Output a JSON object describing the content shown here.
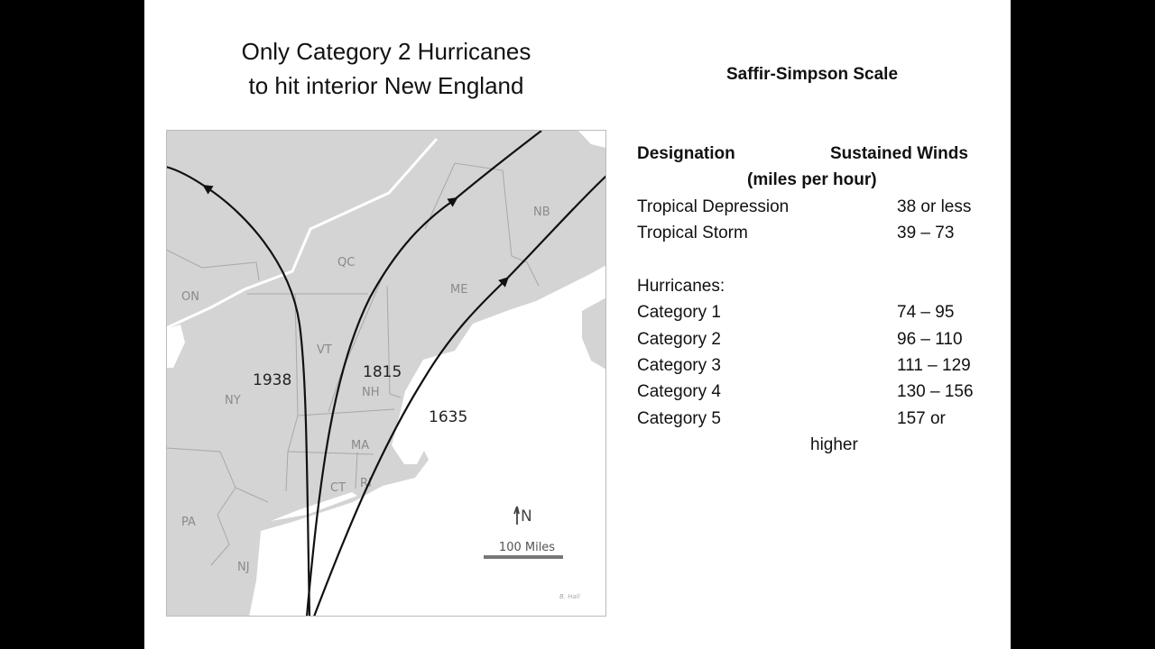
{
  "slide_title": [
    "Only Category 2 Hurricanes",
    "to hit interior New England"
  ],
  "scale_title": "Saffir-Simpson Scale",
  "table": {
    "header_designation": "Designation",
    "header_winds": "Sustained Winds",
    "header_units": "(miles per hour)",
    "rows": [
      {
        "designation": "Tropical Depression",
        "winds": "38 or less"
      },
      {
        "designation": "Tropical Storm",
        "winds": "39 – 73"
      }
    ],
    "hurricanes_label": "Hurricanes:",
    "categories": [
      {
        "designation": "Category 1",
        "winds": "74 – 95"
      },
      {
        "designation": "Category 2",
        "winds": "96 – 110"
      },
      {
        "designation": "Category 3",
        "winds": "111 – 129"
      },
      {
        "designation": "Category 4",
        "winds": "130 – 156"
      },
      {
        "designation": "Category 5",
        "winds": "157 or"
      }
    ],
    "overflow": "higher"
  },
  "map": {
    "regions": {
      "on": "ON",
      "qc": "QC",
      "nb": "NB",
      "me": "ME",
      "vt": "VT",
      "nh": "NH",
      "ny": "NY",
      "ma": "MA",
      "ct": "CT",
      "ri": "RI",
      "pa": "PA",
      "nj": "NJ"
    },
    "tracks": [
      {
        "year": "1938"
      },
      {
        "year": "1815"
      },
      {
        "year": "1635"
      }
    ],
    "north_label": "N",
    "scale_label": "100 Miles",
    "credit": "B. Hall",
    "colors": {
      "land": "#d4d4d4",
      "water": "#ffffff",
      "track": "#111111",
      "border": "#a8a8a8"
    }
  }
}
